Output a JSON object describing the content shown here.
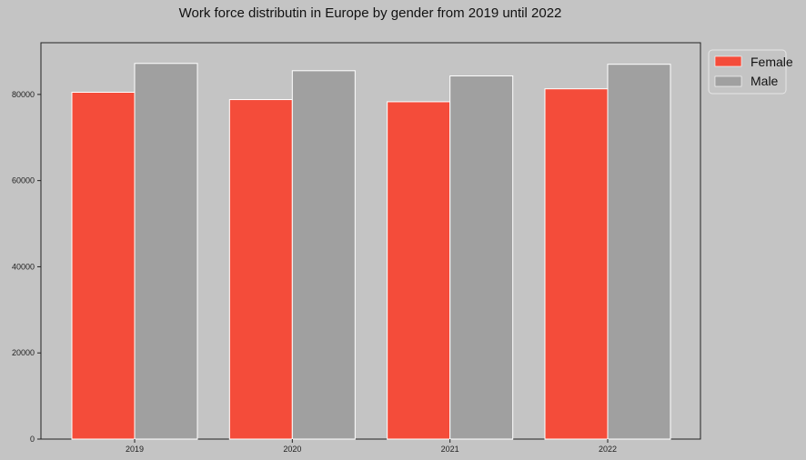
{
  "chart_data": {
    "type": "bar",
    "title": "Work force distributin in Europe by gender from 2019 until 2022",
    "xlabel": "",
    "ylabel": "",
    "categories": [
      "2019",
      "2020",
      "2021",
      "2022"
    ],
    "series": [
      {
        "name": "Female",
        "color": "#f44c3a",
        "values": [
          80500,
          78800,
          78300,
          81300
        ]
      },
      {
        "name": "Male",
        "color": "#a0a0a0",
        "values": [
          87200,
          85500,
          84300,
          87000
        ]
      }
    ],
    "ylim": [
      0,
      92000
    ],
    "yticks": [
      0,
      20000,
      40000,
      60000,
      80000
    ],
    "ytick_labels": [
      "0",
      "20000",
      "40000",
      "60000",
      "80000"
    ],
    "grid": false,
    "legend_position": "outside-top-right",
    "background_color": "#c4c4c4",
    "plot_background_color": "#c4c4c4",
    "bar_edge_color": "#ffffff"
  }
}
